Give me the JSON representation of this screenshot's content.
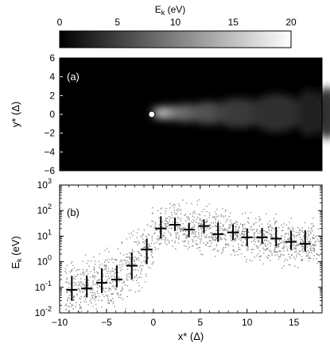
{
  "colorbar": {
    "label": "E",
    "label_sub": "k",
    "label_unit": " (eV)",
    "ticks": [
      "0",
      "5",
      "10",
      "15",
      "20"
    ],
    "range": [
      0,
      20
    ],
    "colormap": [
      "#000000",
      "#ffffff"
    ]
  },
  "chart_data": [
    {
      "type": "heatmap",
      "panel_label": "(a)",
      "ylabel": "y* (Δ)",
      "xlim": [
        -10,
        18
      ],
      "ylim": [
        -6,
        6
      ],
      "y_ticks": [
        "6",
        "4",
        "2",
        "0",
        "−2",
        "−4",
        "−6"
      ],
      "marker": {
        "x": 0,
        "y": 0,
        "shape": "circle",
        "color": "#ffffff"
      },
      "intensity_profile": {
        "x": [
          -10,
          -2,
          -1,
          0,
          0.5,
          1,
          2,
          3,
          5,
          8,
          12,
          16,
          18
        ],
        "peak_energy_eV": [
          0.2,
          1,
          3,
          8,
          13,
          15,
          11,
          9,
          7,
          5,
          4,
          3,
          2.5
        ]
      },
      "background": "#000000"
    },
    {
      "type": "scatter",
      "panel_label": "(b)",
      "xlabel": "x* (Δ)",
      "ylabel": "E",
      "ylabel_sub": "k",
      "ylabel_unit": " (eV)",
      "xlim": [
        -10,
        18
      ],
      "ylim": [
        0.01,
        1000
      ],
      "y_scale": "log",
      "x_ticks": [
        "−10",
        "−5",
        "0",
        "5",
        "10",
        "15"
      ],
      "x_tick_values": [
        -10,
        -5,
        0,
        5,
        10,
        15
      ],
      "y_tick_values": [
        0.01,
        0.1,
        1,
        10,
        100,
        1000
      ],
      "y_ticks": [
        "10",
        "10",
        "10",
        "10",
        "10",
        "10"
      ],
      "y_tick_exponents": [
        "-2",
        "-1",
        "0",
        "1",
        "2",
        "3"
      ],
      "points_color": "#808080",
      "series": [
        {
          "x": [
            -8.7,
            -7.1,
            -5.5,
            -3.9,
            -2.3,
            -0.7,
            0.8,
            2.3,
            3.8,
            5.4,
            6.9,
            8.5,
            10.0,
            11.6,
            13.1,
            14.7,
            16.2
          ],
          "y": [
            0.08,
            0.09,
            0.15,
            0.2,
            0.7,
            3,
            20,
            28,
            18,
            25,
            12,
            14,
            9,
            9,
            8,
            6,
            5
          ],
          "y_err_low": [
            0.05,
            0.05,
            0.09,
            0.1,
            0.5,
            2.2,
            12,
            12,
            9,
            12,
            6,
            7,
            5,
            4,
            4,
            3,
            2.5
          ],
          "y_err_high": [
            0.2,
            0.2,
            0.4,
            0.5,
            1.6,
            5,
            40,
            25,
            15,
            20,
            22,
            15,
            11,
            12,
            15,
            10,
            12
          ],
          "x_err": [
            0.6,
            0.6,
            0.6,
            0.6,
            0.6,
            0.6,
            0.6,
            0.6,
            0.6,
            0.6,
            0.6,
            0.6,
            0.6,
            0.6,
            0.6,
            0.6,
            0.6
          ],
          "color": "#000000"
        }
      ]
    }
  ]
}
